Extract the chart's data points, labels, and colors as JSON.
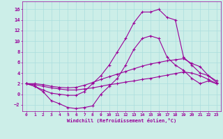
{
  "xlabel": "Windchill (Refroidissement éolien,°C)",
  "bg_color": "#cceee8",
  "grid_color": "#aadddd",
  "line_color": "#990099",
  "xlim": [
    -0.5,
    23.5
  ],
  "ylim": [
    -3.2,
    17.5
  ],
  "xticks": [
    0,
    1,
    2,
    3,
    4,
    5,
    6,
    7,
    8,
    9,
    10,
    11,
    12,
    13,
    14,
    15,
    16,
    17,
    18,
    19,
    20,
    21,
    22,
    23
  ],
  "yticks": [
    -2,
    0,
    2,
    4,
    6,
    8,
    10,
    12,
    14,
    16
  ],
  "curve1_x": [
    0,
    1,
    2,
    3,
    4,
    5,
    6,
    7,
    8,
    9,
    10,
    11,
    12,
    13,
    14,
    15,
    16,
    17,
    18,
    19,
    20,
    21,
    22,
    23
  ],
  "curve1_y": [
    2,
    1.5,
    0.5,
    -1.2,
    -1.8,
    -2.5,
    -2.7,
    -2.5,
    -2.2,
    0.0,
    1.5,
    3.0,
    5.5,
    8.5,
    10.5,
    11.0,
    10.5,
    7.0,
    5.5,
    4.5,
    3.0,
    2.0,
    2.5,
    2.0
  ],
  "curve2_x": [
    0,
    1,
    2,
    3,
    4,
    5,
    6,
    7,
    8,
    9,
    10,
    11,
    12,
    13,
    14,
    15,
    16,
    17,
    18,
    19,
    20,
    21,
    22,
    23
  ],
  "curve2_y": [
    2.0,
    1.5,
    0.8,
    0.2,
    0.0,
    -0.2,
    -0.2,
    0.5,
    2.0,
    3.5,
    5.5,
    8.0,
    10.5,
    13.5,
    15.5,
    15.5,
    16.0,
    14.5,
    14.0,
    7.0,
    5.5,
    4.0,
    3.5,
    2.5
  ],
  "curve3_x": [
    0,
    1,
    2,
    3,
    4,
    5,
    6,
    7,
    8,
    9,
    10,
    11,
    12,
    13,
    14,
    15,
    16,
    17,
    18,
    19,
    20,
    21,
    22,
    23
  ],
  "curve3_y": [
    2.0,
    2.0,
    1.8,
    1.5,
    1.3,
    1.2,
    1.3,
    1.7,
    2.2,
    2.8,
    3.3,
    3.8,
    4.3,
    4.8,
    5.3,
    5.7,
    6.0,
    6.3,
    6.5,
    6.7,
    5.8,
    5.2,
    3.5,
    2.2
  ],
  "curve4_x": [
    0,
    1,
    2,
    3,
    4,
    5,
    6,
    7,
    8,
    9,
    10,
    11,
    12,
    13,
    14,
    15,
    16,
    17,
    18,
    19,
    20,
    21,
    22,
    23
  ],
  "curve4_y": [
    2.0,
    1.8,
    1.5,
    1.2,
    1.0,
    0.8,
    0.8,
    1.0,
    1.2,
    1.5,
    1.8,
    2.0,
    2.3,
    2.5,
    2.8,
    3.0,
    3.3,
    3.6,
    3.9,
    4.2,
    4.0,
    3.5,
    2.8,
    2.0
  ]
}
